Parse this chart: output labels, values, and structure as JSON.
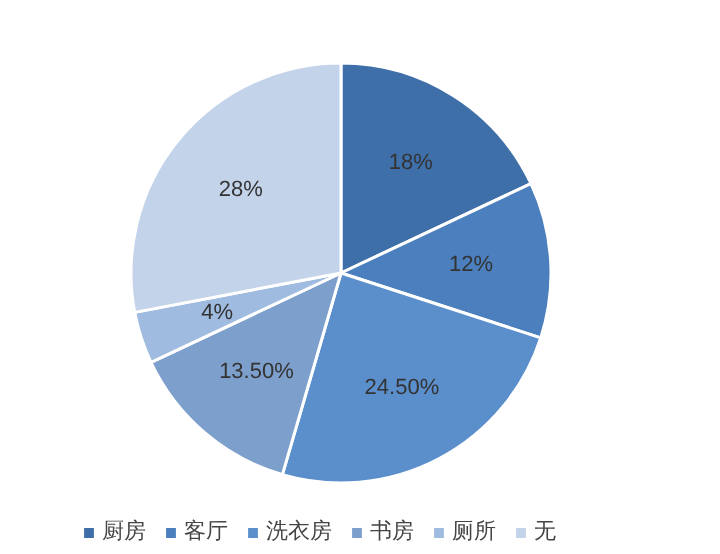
{
  "chart_data": {
    "type": "pie",
    "categories": [
      "厨房",
      "客厅",
      "洗衣房",
      "书房",
      "厕所",
      "无"
    ],
    "values": [
      18,
      12,
      24.5,
      13.5,
      4,
      28
    ],
    "value_labels": [
      "18%",
      "12%",
      "24.50%",
      "13.50%",
      "4%",
      "28%"
    ],
    "colors": [
      "#3e6fa8",
      "#4b7fbd",
      "#5b8fcc",
      "#7d9fcb",
      "#9fbbe0",
      "#c3d3ea"
    ],
    "legend": "bottom"
  }
}
